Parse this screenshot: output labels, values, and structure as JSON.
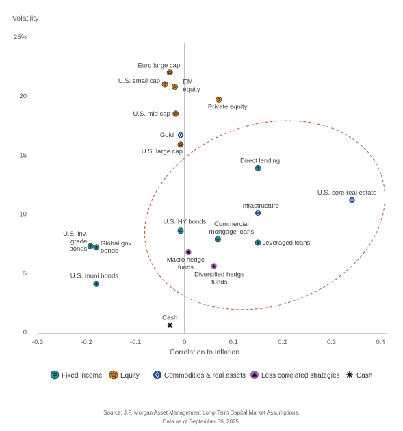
{
  "chart_data": {
    "type": "scatter",
    "ylabel": "Volatility",
    "xlabel": "Correlation to inflation",
    "xlim": [
      -0.3,
      0.4
    ],
    "ylim": [
      0,
      25
    ],
    "x_ticks": [
      -0.3,
      -0.2,
      -0.1,
      0,
      0.1,
      0.2,
      0.3,
      0.4
    ],
    "x_tick_labels": [
      "-0.3",
      "-0.2",
      "-0.1",
      "0",
      "0.1",
      "0.2",
      "0.3",
      "0.4"
    ],
    "y_ticks": [
      0,
      5,
      10,
      15,
      20,
      25
    ],
    "y_tick_labels": [
      "0",
      "5",
      "10",
      "15",
      "20",
      "25%"
    ],
    "grid": false,
    "legend_position": "bottom",
    "categories": [
      {
        "key": "fixed",
        "name": "Fixed income",
        "color": "#1a96a6",
        "icon": "fixed-income-icon"
      },
      {
        "key": "equity",
        "name": "Equity",
        "color": "#e08a1e",
        "icon": "equity-icon"
      },
      {
        "key": "commod",
        "name": "Commodities & real assets",
        "color": "#1d4e89",
        "icon": "commodities-icon"
      },
      {
        "key": "lesscorr",
        "name": "Less correlated strategies",
        "color": "#a05cc0",
        "icon": "less-correlated-icon"
      },
      {
        "key": "cash",
        "name": "Cash",
        "color": "#111111",
        "icon": "cash-icon"
      }
    ],
    "points": [
      {
        "label": [
          "Euro large cap"
        ],
        "x": -0.03,
        "y": 22.0,
        "cat": "equity"
      },
      {
        "label": [
          "U.S. small cap"
        ],
        "x": -0.04,
        "y": 21.0,
        "cat": "equity"
      },
      {
        "label": [
          "EM",
          "equity"
        ],
        "x": -0.02,
        "y": 20.8,
        "cat": "equity"
      },
      {
        "label": [
          "Private equity"
        ],
        "x": 0.07,
        "y": 19.7,
        "cat": "equity"
      },
      {
        "label": [
          "U.S. mid cap"
        ],
        "x": -0.018,
        "y": 18.5,
        "cat": "equity"
      },
      {
        "label": [
          "Gold"
        ],
        "x": -0.008,
        "y": 16.7,
        "cat": "commod"
      },
      {
        "label": [
          "U.S. large cap"
        ],
        "x": -0.008,
        "y": 15.9,
        "cat": "equity"
      },
      {
        "label": [
          "Direct lending"
        ],
        "x": 0.15,
        "y": 13.9,
        "cat": "fixed"
      },
      {
        "label": [
          "U.S. core real estate"
        ],
        "x": 0.342,
        "y": 11.2,
        "cat": "commod"
      },
      {
        "label": [
          "Infrastructure"
        ],
        "x": 0.15,
        "y": 10.1,
        "cat": "commod"
      },
      {
        "label": [
          "U.S. HY bonds"
        ],
        "x": -0.008,
        "y": 8.6,
        "cat": "fixed"
      },
      {
        "label": [
          "Commercial",
          "mortgage loans"
        ],
        "x": 0.068,
        "y": 7.9,
        "cat": "fixed"
      },
      {
        "label": [
          "Leveraged loans"
        ],
        "x": 0.15,
        "y": 7.6,
        "cat": "fixed"
      },
      {
        "label": [
          "Global gov.",
          "bonds"
        ],
        "x": -0.18,
        "y": 7.2,
        "cat": "fixed"
      },
      {
        "label": [
          "U.S. inv.",
          "grade",
          "bonds"
        ],
        "x": -0.192,
        "y": 7.3,
        "cat": "fixed"
      },
      {
        "label": [
          "Macro hedge",
          "funds"
        ],
        "x": 0.008,
        "y": 6.8,
        "cat": "lesscorr"
      },
      {
        "label": [
          "Diversified hedge",
          "funds"
        ],
        "x": 0.06,
        "y": 5.6,
        "cat": "lesscorr"
      },
      {
        "label": [
          "U.S. muni bonds"
        ],
        "x": -0.18,
        "y": 4.1,
        "cat": "fixed"
      },
      {
        "label": [
          "Cash"
        ],
        "x": -0.03,
        "y": 0.6,
        "cat": "cash"
      }
    ]
  },
  "source": {
    "line1": "Source: J.P. Morgan Asset Management Long-Term Capital Market Assumptions.",
    "line2": "Data as of September 30, 2025."
  }
}
